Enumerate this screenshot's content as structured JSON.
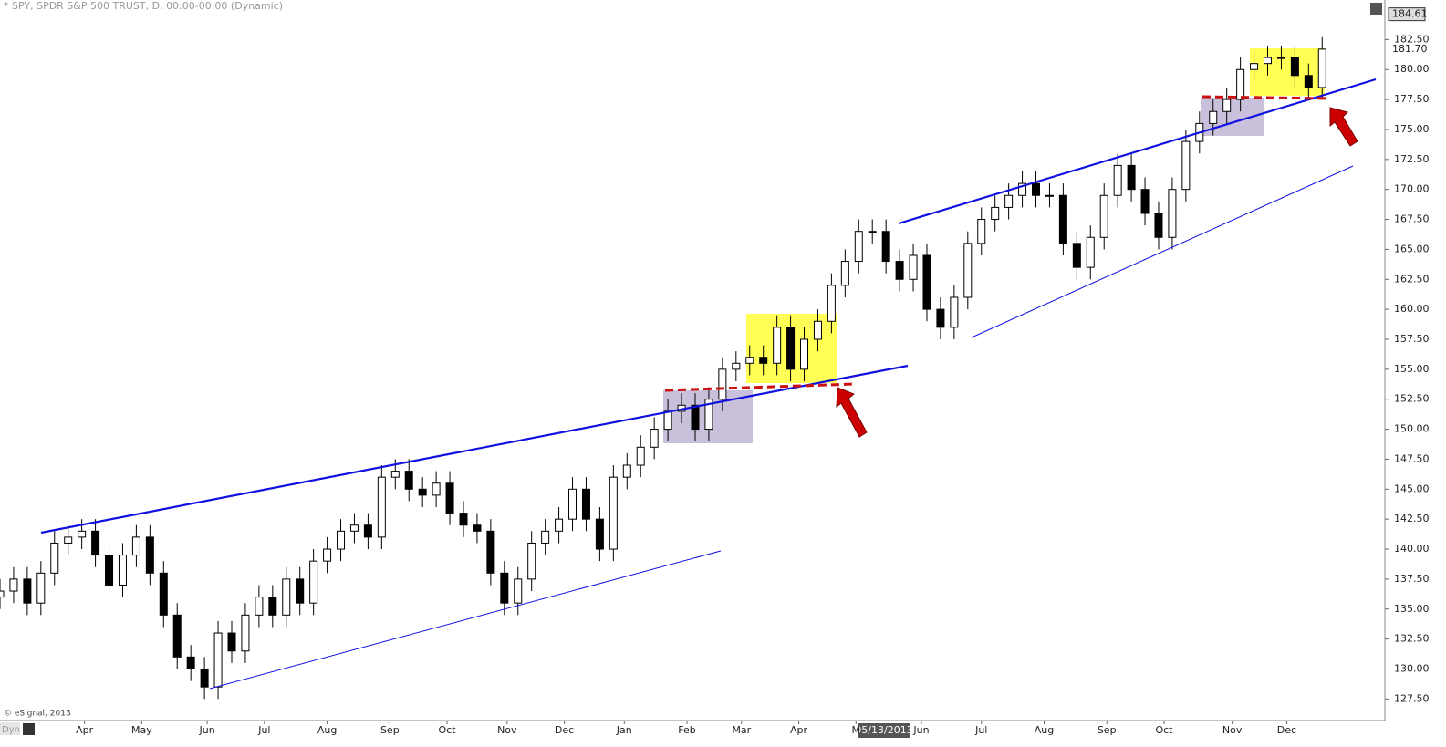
{
  "chart_data": {
    "type": "candlestick",
    "title": "* SPY, SPDR S&P 500 TRUST, D, 00:00-00:00 (Dynamic)",
    "copyright": "© eSignal, 2013",
    "corner_label": "Dyn",
    "cursor_label": "05/13/2013",
    "price_tags": [
      {
        "value": 184.61,
        "label": "184.61"
      },
      {
        "value": 181.7,
        "label": "181.70"
      }
    ],
    "x": [
      0,
      5,
      10,
      15,
      20,
      25,
      30,
      35,
      40,
      45,
      50,
      55,
      60,
      65,
      70,
      75,
      80,
      85,
      90,
      95,
      100,
      105,
      110,
      115,
      120,
      125,
      130,
      135,
      140,
      145,
      150,
      155,
      160,
      165,
      170,
      175,
      180,
      185,
      190,
      195,
      200,
      205,
      210,
      215,
      220,
      225,
      230,
      235,
      240,
      245,
      250,
      255,
      260,
      265,
      270,
      275,
      280,
      285,
      290,
      295,
      300,
      305,
      310,
      315,
      320,
      325,
      330,
      335,
      340,
      345,
      350,
      355,
      360,
      365,
      370,
      375,
      380,
      385,
      390,
      395,
      400,
      405,
      410,
      415,
      420,
      425,
      430,
      435,
      440,
      445,
      450,
      455,
      460,
      465,
      470,
      475,
      480,
      485
    ],
    "open": [
      136,
      136.5,
      137.5,
      135.5,
      138,
      140.5,
      141,
      141.5,
      139.5,
      137,
      139.5,
      141,
      138,
      134.5,
      131,
      130,
      128.5,
      133,
      131.5,
      134.5,
      136,
      134.5,
      137.5,
      135.5,
      139,
      140,
      141.5,
      142,
      141,
      146,
      146.5,
      145,
      144.5,
      145.5,
      143,
      142,
      141.5,
      138,
      135.5,
      137.5,
      140.5,
      141.5,
      142.5,
      145,
      142.5,
      140,
      146,
      147,
      148.5,
      150,
      151.5,
      152,
      150,
      152.5,
      155,
      155.5,
      156,
      155.5,
      158.5,
      155,
      157.5,
      159,
      162,
      164,
      166.5,
      166.5,
      164,
      162.5,
      164.5,
      160,
      158.5,
      161,
      165.5,
      167.5,
      168.5,
      169.5,
      170.5,
      169.5,
      169.5,
      165.5,
      163.5,
      166,
      169.5,
      172,
      170,
      168,
      166,
      170,
      174,
      175.5,
      176.5,
      177.5,
      180,
      180.5,
      181,
      181,
      179.5,
      178.5
    ],
    "high": [
      137.5,
      138.5,
      138.5,
      139,
      141.5,
      142,
      142.5,
      142.5,
      140.5,
      140.5,
      142,
      142,
      139,
      135.5,
      132,
      131,
      134,
      134,
      135.5,
      137,
      137,
      138.5,
      138.5,
      140,
      141,
      142.5,
      143,
      143,
      147,
      147.5,
      147.5,
      146,
      146.5,
      146.5,
      144,
      143,
      142.5,
      139,
      138.5,
      141.5,
      142.5,
      143.5,
      146,
      146,
      143.5,
      147,
      148,
      149.5,
      151,
      152.5,
      153,
      153,
      153.5,
      156,
      156.5,
      157,
      157,
      159.5,
      159.5,
      158.5,
      160,
      163,
      165,
      167.5,
      167.5,
      167.5,
      165,
      165.5,
      165.5,
      161,
      162,
      166.5,
      168.5,
      169.5,
      170.5,
      171.5,
      171.5,
      170.5,
      170.5,
      166.5,
      167,
      170.5,
      173,
      173,
      171,
      169,
      171,
      175,
      176.5,
      177.5,
      178.5,
      181,
      181.5,
      182,
      182,
      182,
      180.5,
      182.7
    ],
    "low": [
      135,
      135.5,
      134.5,
      134.5,
      137,
      139.5,
      140,
      138.5,
      136,
      136,
      138.5,
      137,
      133.5,
      130,
      129,
      127.5,
      127.5,
      130.5,
      130.5,
      133.5,
      133.5,
      133.5,
      134.5,
      134.5,
      138,
      139,
      140.5,
      140,
      140,
      145,
      144,
      143.5,
      143.5,
      142,
      141,
      140.5,
      137,
      134.5,
      134.5,
      136.5,
      139.5,
      140.5,
      141.5,
      141.5,
      139,
      139,
      145,
      146,
      147.5,
      149,
      150.5,
      149,
      149,
      151.5,
      154,
      154.5,
      154.5,
      154.5,
      154,
      154,
      156.5,
      158,
      161,
      163,
      165.5,
      163,
      161.5,
      161.5,
      159,
      157.5,
      157.5,
      160,
      164.5,
      166.5,
      167.5,
      168.5,
      168.5,
      168.5,
      164.5,
      162.5,
      162.5,
      165,
      168.5,
      169,
      167,
      165,
      165,
      169,
      173,
      174.5,
      175.5,
      176.5,
      179,
      179.5,
      180,
      178.5,
      177.5,
      177.5
    ],
    "close": [
      136.5,
      137.5,
      135.5,
      138,
      140.5,
      141,
      141.5,
      139.5,
      137,
      139.5,
      141,
      138,
      134.5,
      131,
      130,
      128.5,
      133,
      131.5,
      134.5,
      136,
      134.5,
      137.5,
      135.5,
      139,
      140,
      141.5,
      142,
      141,
      146,
      146.5,
      145,
      144.5,
      145.5,
      143,
      142,
      141.5,
      138,
      135.5,
      137.5,
      140.5,
      141.5,
      142.5,
      145,
      142.5,
      140,
      146,
      147,
      148.5,
      150,
      151.5,
      152,
      150,
      152.5,
      155,
      155.5,
      156,
      155.5,
      158.5,
      155,
      157.5,
      159,
      162,
      164,
      166.5,
      166.5,
      164,
      162.5,
      164.5,
      160,
      158.5,
      161,
      165.5,
      167.5,
      168.5,
      169.5,
      170.5,
      169.5,
      169.5,
      165.5,
      163.5,
      166,
      169.5,
      172,
      170,
      168,
      166,
      170,
      174,
      175.5,
      176.5,
      177.5,
      180,
      180.5,
      181,
      181,
      179.5,
      178.5,
      181.7
    ],
    "up_color": "#ffffff",
    "down_color": "#000000",
    "xlim": [
      0,
      508
    ],
    "ylim": [
      125.7,
      185.8
    ],
    "xticks": [
      {
        "value": 31,
        "label": "Apr"
      },
      {
        "value": 52,
        "label": "May"
      },
      {
        "value": 76,
        "label": "Jun"
      },
      {
        "value": 97,
        "label": "Jul"
      },
      {
        "value": 120,
        "label": "Aug"
      },
      {
        "value": 143,
        "label": "Sep"
      },
      {
        "value": 164,
        "label": "Oct"
      },
      {
        "value": 186,
        "label": "Nov"
      },
      {
        "value": 207,
        "label": "Dec"
      },
      {
        "value": 229,
        "label": "Jan"
      },
      {
        "value": 252,
        "label": "Feb"
      },
      {
        "value": 272,
        "label": "Mar"
      },
      {
        "value": 293,
        "label": "Apr"
      },
      {
        "value": 314,
        "label": "M"
      },
      {
        "value": 338,
        "label": "Jun"
      },
      {
        "value": 360,
        "label": "Jul"
      },
      {
        "value": 383,
        "label": "Aug"
      },
      {
        "value": 406,
        "label": "Sep"
      },
      {
        "value": 427,
        "label": "Oct"
      },
      {
        "value": 452,
        "label": "Nov"
      },
      {
        "value": 472,
        "label": "Dec"
      }
    ],
    "yticks": [
      {
        "value": 127.5,
        "label": "127.50"
      },
      {
        "value": 130,
        "label": "130.00"
      },
      {
        "value": 132.5,
        "label": "132.50"
      },
      {
        "value": 135,
        "label": "135.00"
      },
      {
        "value": 137.5,
        "label": "137.50"
      },
      {
        "value": 140,
        "label": "140.00"
      },
      {
        "value": 142.5,
        "label": "142.50"
      },
      {
        "value": 145,
        "label": "145.00"
      },
      {
        "value": 147.5,
        "label": "147.50"
      },
      {
        "value": 150,
        "label": "150.00"
      },
      {
        "value": 152.5,
        "label": "152.50"
      },
      {
        "value": 155,
        "label": "155.00"
      },
      {
        "value": 157.5,
        "label": "157.50"
      },
      {
        "value": 160,
        "label": "160.00"
      },
      {
        "value": 162.5,
        "label": "162.50"
      },
      {
        "value": 165,
        "label": "165.00"
      },
      {
        "value": 167.5,
        "label": "167.50"
      },
      {
        "value": 170,
        "label": "170.00"
      },
      {
        "value": 172.5,
        "label": "172.50"
      },
      {
        "value": 175,
        "label": "175.00"
      },
      {
        "value": 177.5,
        "label": "177.50"
      },
      {
        "value": 180,
        "label": "180.00"
      },
      {
        "value": 182.5,
        "label": "182.50"
      }
    ]
  }
}
